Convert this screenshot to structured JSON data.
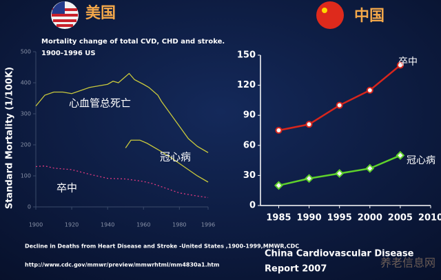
{
  "headers": {
    "left": "美国",
    "right": "中国"
  },
  "chart_data": [
    {
      "type": "line",
      "title": "Mortality change of total CVD, CHD and stroke.",
      "subtitle": "1900-1996      US",
      "ylabel": "Standard Mortality (1/100K)",
      "xlim": [
        1900,
        1996
      ],
      "xticks": [
        1900,
        1920,
        1940,
        1960,
        1980,
        1996
      ],
      "ylim": [
        0,
        500
      ],
      "yticks": [
        0,
        100,
        200,
        300,
        400,
        500
      ],
      "series": [
        {
          "name": "心血管总死亡",
          "color": "#c9c93c",
          "dash": false,
          "x": [
            1900,
            1905,
            1910,
            1915,
            1920,
            1925,
            1930,
            1935,
            1940,
            1943,
            1946,
            1950,
            1952,
            1955,
            1960,
            1963,
            1968,
            1970,
            1975,
            1980,
            1985,
            1990,
            1996
          ],
          "values": [
            325,
            360,
            370,
            370,
            365,
            375,
            385,
            390,
            395,
            405,
            400,
            420,
            430,
            410,
            395,
            385,
            360,
            340,
            300,
            260,
            220,
            195,
            175
          ]
        },
        {
          "name": "冠心病",
          "color": "#c9c93c",
          "dash": false,
          "x": [
            1950,
            1953,
            1958,
            1962,
            1968,
            1975,
            1980,
            1985,
            1990,
            1996
          ],
          "values": [
            190,
            215,
            215,
            205,
            185,
            160,
            140,
            120,
            100,
            80
          ]
        },
        {
          "name": "卒中",
          "color": "#e23a80",
          "dash": true,
          "x": [
            1900,
            1905,
            1910,
            1920,
            1930,
            1940,
            1950,
            1960,
            1965,
            1970,
            1980,
            1990,
            1996
          ],
          "values": [
            130,
            132,
            125,
            120,
            105,
            92,
            90,
            82,
            75,
            65,
            45,
            35,
            30
          ]
        }
      ]
    },
    {
      "type": "line",
      "xlim": [
        1982,
        2010
      ],
      "xticks": [
        1985,
        1990,
        1995,
        2000,
        2005,
        2010
      ],
      "ylim": [
        0,
        150
      ],
      "yticks": [
        0,
        30,
        60,
        90,
        120,
        150
      ],
      "series": [
        {
          "name": "卒中",
          "color": "#d8261c",
          "marker": "circle",
          "x": [
            1985,
            1990,
            1995,
            2000,
            2005
          ],
          "values": [
            75,
            81,
            100,
            115,
            140
          ]
        },
        {
          "name": "冠心病",
          "color": "#5fd22b",
          "marker": "diamond",
          "x": [
            1985,
            1990,
            1995,
            2000,
            2005
          ],
          "values": [
            20,
            27,
            32,
            37,
            50
          ]
        }
      ]
    }
  ],
  "source": {
    "left": [
      "Decline in Deaths from Heart Disease and Stroke -United States ,1900-1999,MMWR,CDC",
      "http://www.cdc.gov/mmwr/preview/mmwrhtml/mm4830a1.htm"
    ],
    "right": [
      "China Cardiovascular Disease",
      "Report  2007"
    ]
  },
  "watermark": "养老信息网"
}
